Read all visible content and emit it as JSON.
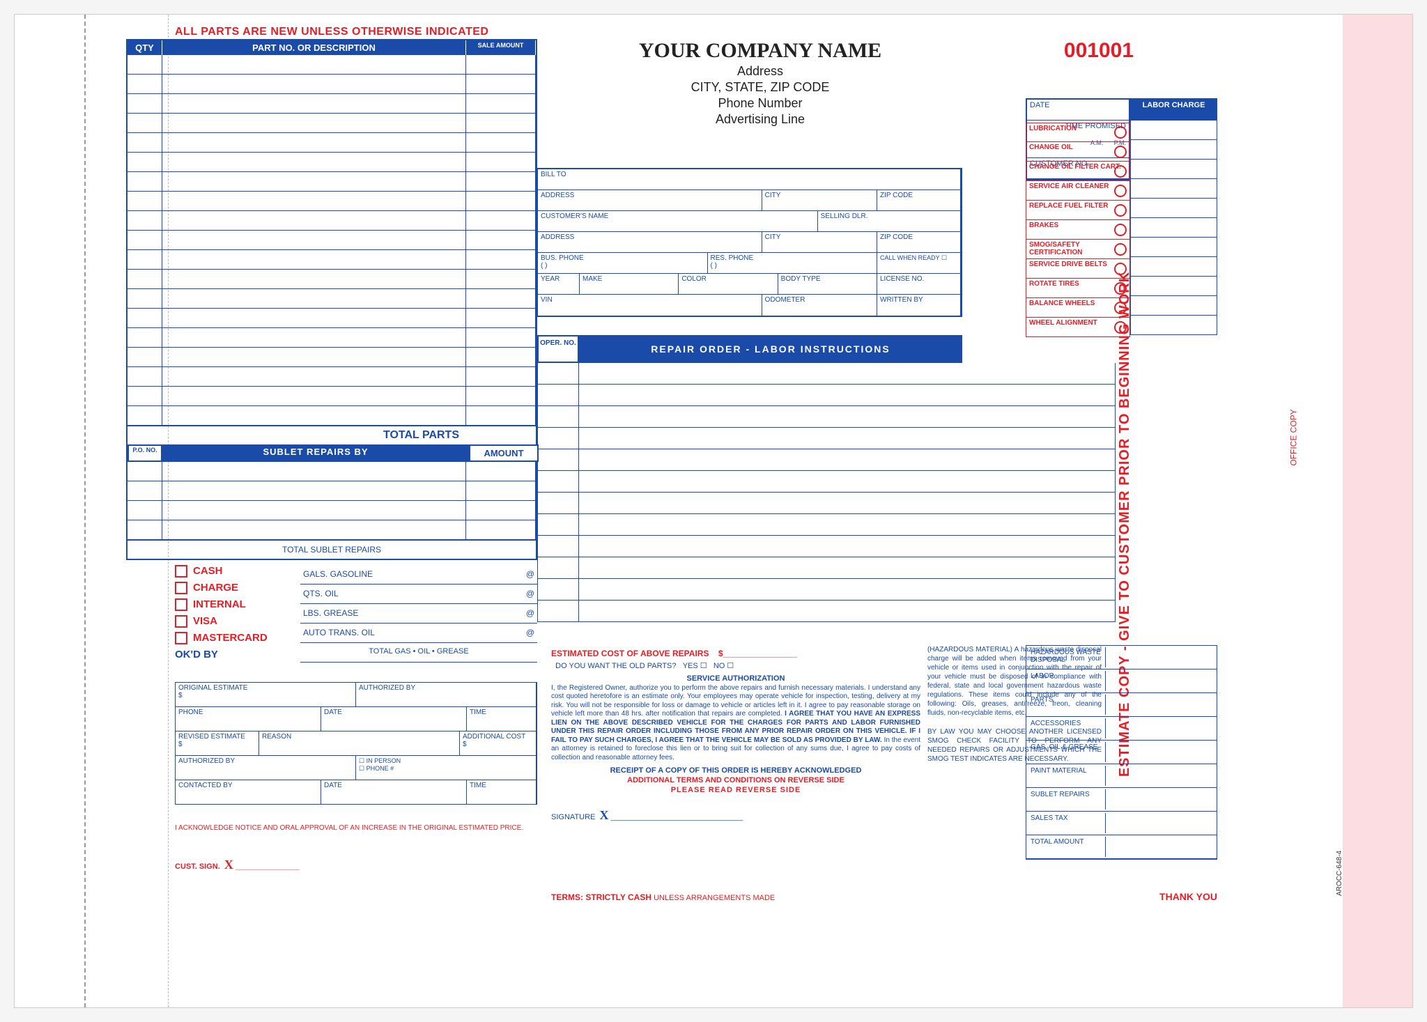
{
  "colors": {
    "blue": "#1a4ba8",
    "red": "#e41e26",
    "pink": "#fbdde2",
    "bg": "#ffffff"
  },
  "typography": {
    "main_font": "Arial",
    "serif_font": "Times New Roman",
    "company_size": 30,
    "body_size": 10,
    "label_size": 11
  },
  "top_banner": "ALL PARTS ARE NEW UNLESS OTHERWISE INDICATED",
  "form_number": "001001",
  "side_code": "AROCC-648-4",
  "side_estimate": "ESTIMATE COPY - GIVE TO CUSTOMER PRIOR TO BEGINNING WORK",
  "side_office": "OFFICE COPY",
  "company": {
    "name": "YOUR COMPANY NAME",
    "address": "Address",
    "city_line": "CITY, STATE, ZIP CODE",
    "phone": "Phone Number",
    "ad": "Advertising Line"
  },
  "parts_header": {
    "qty": "QTY",
    "desc": "PART NO. OR DESCRIPTION",
    "amt": "SALE AMOUNT"
  },
  "parts_row_count": 19,
  "total_parts_label": "TOTAL PARTS",
  "sublet": {
    "po": "P.O. NO.",
    "mid": "SUBLET  REPAIRS  BY",
    "amt": "AMOUNT",
    "rows": 4,
    "total": "TOTAL SUBLET REPAIRS"
  },
  "datebox": {
    "date": "DATE",
    "time_promised": "TIME PROMISED",
    "am": "A.M.",
    "pm": "P.M.",
    "cust_no": "CUSTOMER NO."
  },
  "labor_charge_hdr": "LABOR CHARGE",
  "services": [
    "LUBRICATION",
    "CHANGE OIL",
    "CHANGE OIL FILTER CART.",
    "SERVICE AIR CLEANER",
    "REPLACE FUEL FILTER",
    "BRAKES",
    "SMOG/SAFETY CERTIFICATION",
    "SERVICE DRIVE BELTS",
    "ROTATE TIRES",
    "BALANCE WHEELS",
    "WHEEL ALIGNMENT"
  ],
  "cust_fields": {
    "bill_to": "BILL TO",
    "address": "ADDRESS",
    "city": "CITY",
    "zip": "ZIP CODE",
    "cust_name": "CUSTOMER'S NAME",
    "selling_dlr": "SELLING DLR.",
    "bus_phone": "BUS. PHONE",
    "res_phone": "RES. PHONE",
    "call_ready": "CALL WHEN READY",
    "year": "YEAR",
    "make": "MAKE",
    "color": "COLOR",
    "body": "BODY TYPE",
    "license": "LICENSE NO.",
    "vin": "VIN",
    "odometer": "ODOMETER",
    "written_by": "WRITTEN BY",
    "paren": "(          )"
  },
  "ro_header": {
    "oper": "OPER. NO.",
    "title": "REPAIR  ORDER  -  LABOR  INSTRUCTIONS"
  },
  "labor_line_count": 12,
  "payment": {
    "options": [
      "CASH",
      "CHARGE",
      "INTERNAL",
      "VISA",
      "MASTERCARD"
    ],
    "okd_by": "OK'D  BY"
  },
  "gasoil": {
    "gals": "GALS. GASOLINE",
    "qts": "QTS. OIL",
    "lbs": "LBS. GREASE",
    "auto": "AUTO TRANS. OIL",
    "at": "@",
    "total": "TOTAL GAS • OIL • GREASE"
  },
  "estimate": {
    "orig": "ORIGINAL ESTIMATE",
    "auth_by": "AUTHORIZED BY",
    "phone": "PHONE",
    "date": "DATE",
    "time": "TIME",
    "revised": "REVISED ESTIMATE",
    "reason": "REASON",
    "addl": "ADDITIONAL COST",
    "contacted": "CONTACTED BY",
    "in_person": "IN PERSON",
    "phone_num": "PHONE #",
    "dollar": "$",
    "checkbox": "☐"
  },
  "auth_text": {
    "est_cost": "ESTIMATED COST OF ABOVE REPAIRS",
    "dollar": "$",
    "old_parts": "DO YOU WANT THE OLD PARTS?",
    "yes": "YES",
    "no": "NO",
    "checkbox": "☐",
    "svc_auth": "SERVICE AUTHORIZATION",
    "body": "I, the Registered Owner, authorize you to perform the above repairs and furnish necessary materials. I understand any cost quoted heretofore is an estimate only. Your employees may operate vehicle for inspection, testing, delivery at my risk. You will not be responsible for loss or damage to vehicle or articles left in it. I agree to pay reasonable storage on vehicle left more than 48 hrs. after notification that repairs are completed.",
    "lien": "I AGREE THAT YOU HAVE AN EXPRESS LIEN ON THE ABOVE DESCRIBED VEHICLE FOR THE CHARGES FOR PARTS AND LABOR FURNISHED UNDER THIS REPAIR ORDER INCLUDING THOSE FROM ANY PRIOR REPAIR ORDER ON THIS VEHICLE. IF I FAIL TO PAY SUCH CHARGES, I AGREE THAT THE VEHICLE MAY BE SOLD AS PROVIDED BY LAW.",
    "tail": " In the event an attorney is retained to foreclose this lien or to bring suit for collection of any sums due, I agree to pay costs of collection and reasonable attorney fees.",
    "receipt": "RECEIPT OF A COPY OF THIS ORDER IS HEREBY ACKNOWLEDGED",
    "addl_terms": "ADDITIONAL TERMS AND CONDITIONS ON REVERSE SIDE",
    "read_reverse": "PLEASE  READ  REVERSE  SIDE",
    "signature": "SIGNATURE",
    "x": "X"
  },
  "hazmat": {
    "body": "(HAZARDOUS MATERIAL) A hazardous waste disposal charge will be added when items removed from your vehicle or items used in conjunction with the repair of your vehicle must be disposed of in compliance with federal, state and local government hazardous waste regulations. These items could include any of the following: Oils, greases, antifreeze, freon, cleaning fluids, non-recyclable items, etc.",
    "smog": "BY LAW YOU MAY CHOOSE ANOTHER LICENSED SMOG CHECK FACILITY TO PERFORM ANY NEEDED REPAIRS OR ADJUSTMENTS WHICH THE SMOG TEST INDICATES ARE NECESSARY."
  },
  "totals": [
    "HAZARDOUS WASTE DISPOSAL",
    "LABOR",
    "PARTS",
    "ACCESSORIES",
    "GAS, OIL & GREASE",
    "PAINT MATERIAL",
    "SUBLET REPAIRS",
    "SALES TAX",
    "TOTAL AMOUNT"
  ],
  "ack": "I ACKNOWLEDGE NOTICE AND ORAL APPROVAL OF AN INCREASE IN THE ORIGINAL ESTIMATED PRICE.",
  "cust_sign": "CUST. SIGN.",
  "x": "X",
  "terms": {
    "label": "TERMS: STRICTLY CASH",
    "tail": " UNLESS ARRANGEMENTS MADE"
  },
  "thanks": "THANK YOU"
}
